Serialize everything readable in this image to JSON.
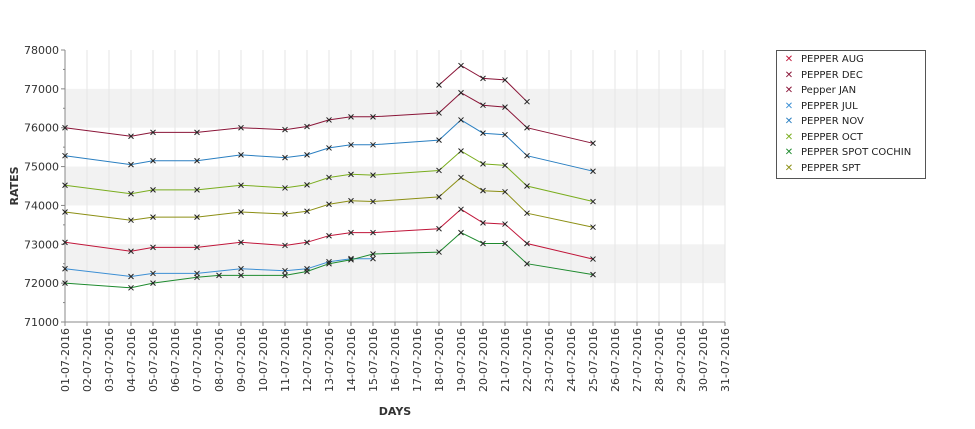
{
  "chart_data": {
    "type": "line",
    "title": "",
    "xlabel": "DAYS",
    "ylabel": "RATES",
    "ylim": [
      71000,
      78000
    ],
    "yticks": [
      "71000",
      "72000",
      "73000",
      "74000",
      "75000",
      "76000",
      "77000",
      "78000"
    ],
    "categories": [
      "01-07-2016",
      "02-07-2016",
      "03-07-2016",
      "04-07-2016",
      "05-07-2016",
      "06-07-2016",
      "07-07-2016",
      "08-07-2016",
      "09-07-2016",
      "10-07-2016",
      "11-07-2016",
      "12-07-2016",
      "13-07-2016",
      "14-07-2016",
      "15-07-2016",
      "16-07-2016",
      "17-07-2016",
      "18-07-2016",
      "19-07-2016",
      "20-07-2016",
      "21-07-2016",
      "22-07-2016",
      "23-07-2016",
      "24-07-2016",
      "25-07-2016",
      "26-07-2016",
      "27-07-2016",
      "28-07-2016",
      "29-07-2016",
      "30-07-2016",
      "31-07-2016"
    ],
    "grid": "horizontal bands",
    "legend_position": "right",
    "series": [
      {
        "name": "PEPPER AUG",
        "color": "#c0163a",
        "points": [
          [
            0,
            73050
          ],
          [
            3,
            72820
          ],
          [
            4,
            72920
          ],
          [
            6,
            72920
          ],
          [
            8,
            73050
          ],
          [
            10,
            72970
          ],
          [
            11,
            73050
          ],
          [
            12,
            73220
          ],
          [
            13,
            73300
          ],
          [
            14,
            73300
          ],
          [
            17,
            73400
          ],
          [
            18,
            73900
          ],
          [
            19,
            73550
          ],
          [
            20,
            73520
          ],
          [
            21,
            73020
          ],
          [
            24,
            72620
          ]
        ]
      },
      {
        "name": "PEPPER DEC",
        "color": "#8a1538",
        "points": [
          [
            17,
            77100
          ],
          [
            18,
            77600
          ],
          [
            19,
            77270
          ],
          [
            20,
            77230
          ],
          [
            21,
            76670
          ]
        ]
      },
      {
        "name": "Pepper JAN",
        "color": "#8a1538",
        "points": [
          [
            0,
            76000
          ],
          [
            3,
            75780
          ],
          [
            4,
            75880
          ],
          [
            6,
            75880
          ],
          [
            8,
            76000
          ],
          [
            10,
            75950
          ],
          [
            11,
            76030
          ],
          [
            12,
            76200
          ],
          [
            13,
            76280
          ],
          [
            14,
            76280
          ],
          [
            17,
            76380
          ],
          [
            18,
            76900
          ],
          [
            19,
            76580
          ],
          [
            20,
            76530
          ],
          [
            21,
            76000
          ],
          [
            24,
            75600
          ]
        ]
      },
      {
        "name": "PEPPER JUL",
        "color": "#3c8fd4",
        "points": [
          [
            0,
            72370
          ],
          [
            3,
            72170
          ],
          [
            4,
            72250
          ],
          [
            6,
            72250
          ],
          [
            8,
            72370
          ],
          [
            10,
            72320
          ],
          [
            11,
            72370
          ],
          [
            12,
            72550
          ],
          [
            13,
            72630
          ],
          [
            14,
            72630
          ]
        ]
      },
      {
        "name": "PEPPER NOV",
        "color": "#2a7fc1",
        "points": [
          [
            0,
            75280
          ],
          [
            3,
            75050
          ],
          [
            4,
            75150
          ],
          [
            6,
            75150
          ],
          [
            8,
            75300
          ],
          [
            10,
            75230
          ],
          [
            11,
            75300
          ],
          [
            12,
            75480
          ],
          [
            13,
            75560
          ],
          [
            14,
            75560
          ],
          [
            17,
            75680
          ],
          [
            18,
            76200
          ],
          [
            19,
            75860
          ],
          [
            20,
            75820
          ],
          [
            21,
            75280
          ],
          [
            24,
            74880
          ]
        ]
      },
      {
        "name": "PEPPER OCT",
        "color": "#7aad1e",
        "points": [
          [
            0,
            74520
          ],
          [
            3,
            74300
          ],
          [
            4,
            74400
          ],
          [
            6,
            74400
          ],
          [
            8,
            74520
          ],
          [
            10,
            74450
          ],
          [
            11,
            74530
          ],
          [
            12,
            74720
          ],
          [
            13,
            74800
          ],
          [
            14,
            74780
          ],
          [
            17,
            74900
          ],
          [
            18,
            75400
          ],
          [
            19,
            75070
          ],
          [
            20,
            75030
          ],
          [
            21,
            74500
          ],
          [
            24,
            74100
          ]
        ]
      },
      {
        "name": "PEPPER SPOT COCHIN",
        "color": "#1e8a2e",
        "points": [
          [
            0,
            72000
          ],
          [
            3,
            71880
          ],
          [
            4,
            72000
          ],
          [
            6,
            72150
          ],
          [
            7,
            72200
          ],
          [
            8,
            72200
          ],
          [
            10,
            72200
          ],
          [
            11,
            72300
          ],
          [
            12,
            72500
          ],
          [
            13,
            72600
          ],
          [
            14,
            72750
          ],
          [
            17,
            72800
          ],
          [
            18,
            73300
          ],
          [
            19,
            73020
          ],
          [
            20,
            73020
          ],
          [
            21,
            72500
          ],
          [
            24,
            72220
          ]
        ]
      },
      {
        "name": "PEPPER SPT",
        "color": "#8c8f14",
        "points": [
          [
            0,
            73830
          ],
          [
            3,
            73620
          ],
          [
            4,
            73700
          ],
          [
            6,
            73700
          ],
          [
            8,
            73830
          ],
          [
            10,
            73780
          ],
          [
            11,
            73850
          ],
          [
            12,
            74030
          ],
          [
            13,
            74120
          ],
          [
            14,
            74100
          ],
          [
            17,
            74220
          ],
          [
            18,
            74720
          ],
          [
            19,
            74380
          ],
          [
            20,
            74350
          ],
          [
            21,
            73800
          ],
          [
            24,
            73440
          ]
        ]
      }
    ]
  }
}
